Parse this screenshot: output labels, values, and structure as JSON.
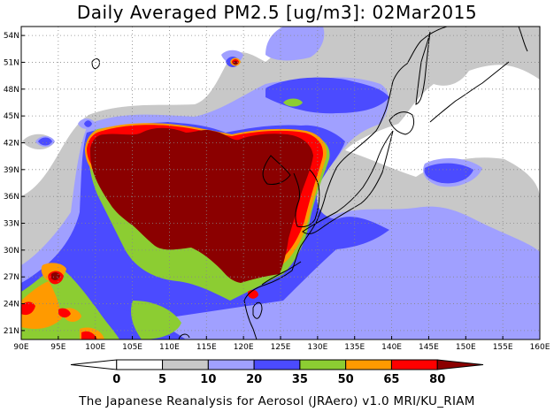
{
  "title": "Daily Averaged PM2.5 [ug/m3]: 02Mar2015",
  "credit": "The Japanese Reanalysis for Aerosol (JRAero) v1.0 MRI/KU_RIAM",
  "map": {
    "lon_range": [
      90,
      160
    ],
    "lat_range": [
      20,
      55
    ],
    "lon_ticks": [
      {
        "value": 90,
        "label": "90E"
      },
      {
        "value": 95,
        "label": "95E"
      },
      {
        "value": 100,
        "label": "100E"
      },
      {
        "value": 105,
        "label": "105E"
      },
      {
        "value": 110,
        "label": "110E"
      },
      {
        "value": 115,
        "label": "115E"
      },
      {
        "value": 120,
        "label": "120E"
      },
      {
        "value": 125,
        "label": "125E"
      },
      {
        "value": 130,
        "label": "130E"
      },
      {
        "value": 135,
        "label": "135E"
      },
      {
        "value": 140,
        "label": "140E"
      },
      {
        "value": 145,
        "label": "145E"
      },
      {
        "value": 150,
        "label": "150E"
      },
      {
        "value": 155,
        "label": "155E"
      },
      {
        "value": 160,
        "label": "160E"
      }
    ],
    "lat_ticks": [
      {
        "value": 21,
        "label": "21N"
      },
      {
        "value": 24,
        "label": "24N"
      },
      {
        "value": 27,
        "label": "27N"
      },
      {
        "value": 30,
        "label": "30N"
      },
      {
        "value": 33,
        "label": "33N"
      },
      {
        "value": 36,
        "label": "36N"
      },
      {
        "value": 39,
        "label": "39N"
      },
      {
        "value": 42,
        "label": "42N"
      },
      {
        "value": 45,
        "label": "45N"
      },
      {
        "value": 48,
        "label": "48N"
      },
      {
        "value": 51,
        "label": "51N"
      },
      {
        "value": 54,
        "label": "54N"
      }
    ]
  },
  "colorbar": {
    "levels": [
      "0",
      "5",
      "10",
      "20",
      "35",
      "50",
      "65",
      "80"
    ],
    "colors": [
      "#ffffff",
      "#ffffff",
      "#c8c8c8",
      "#a0a0ff",
      "#4b4bff",
      "#8ccd32",
      "#ff9a00",
      "#ff0000",
      "#8b0000"
    ]
  }
}
